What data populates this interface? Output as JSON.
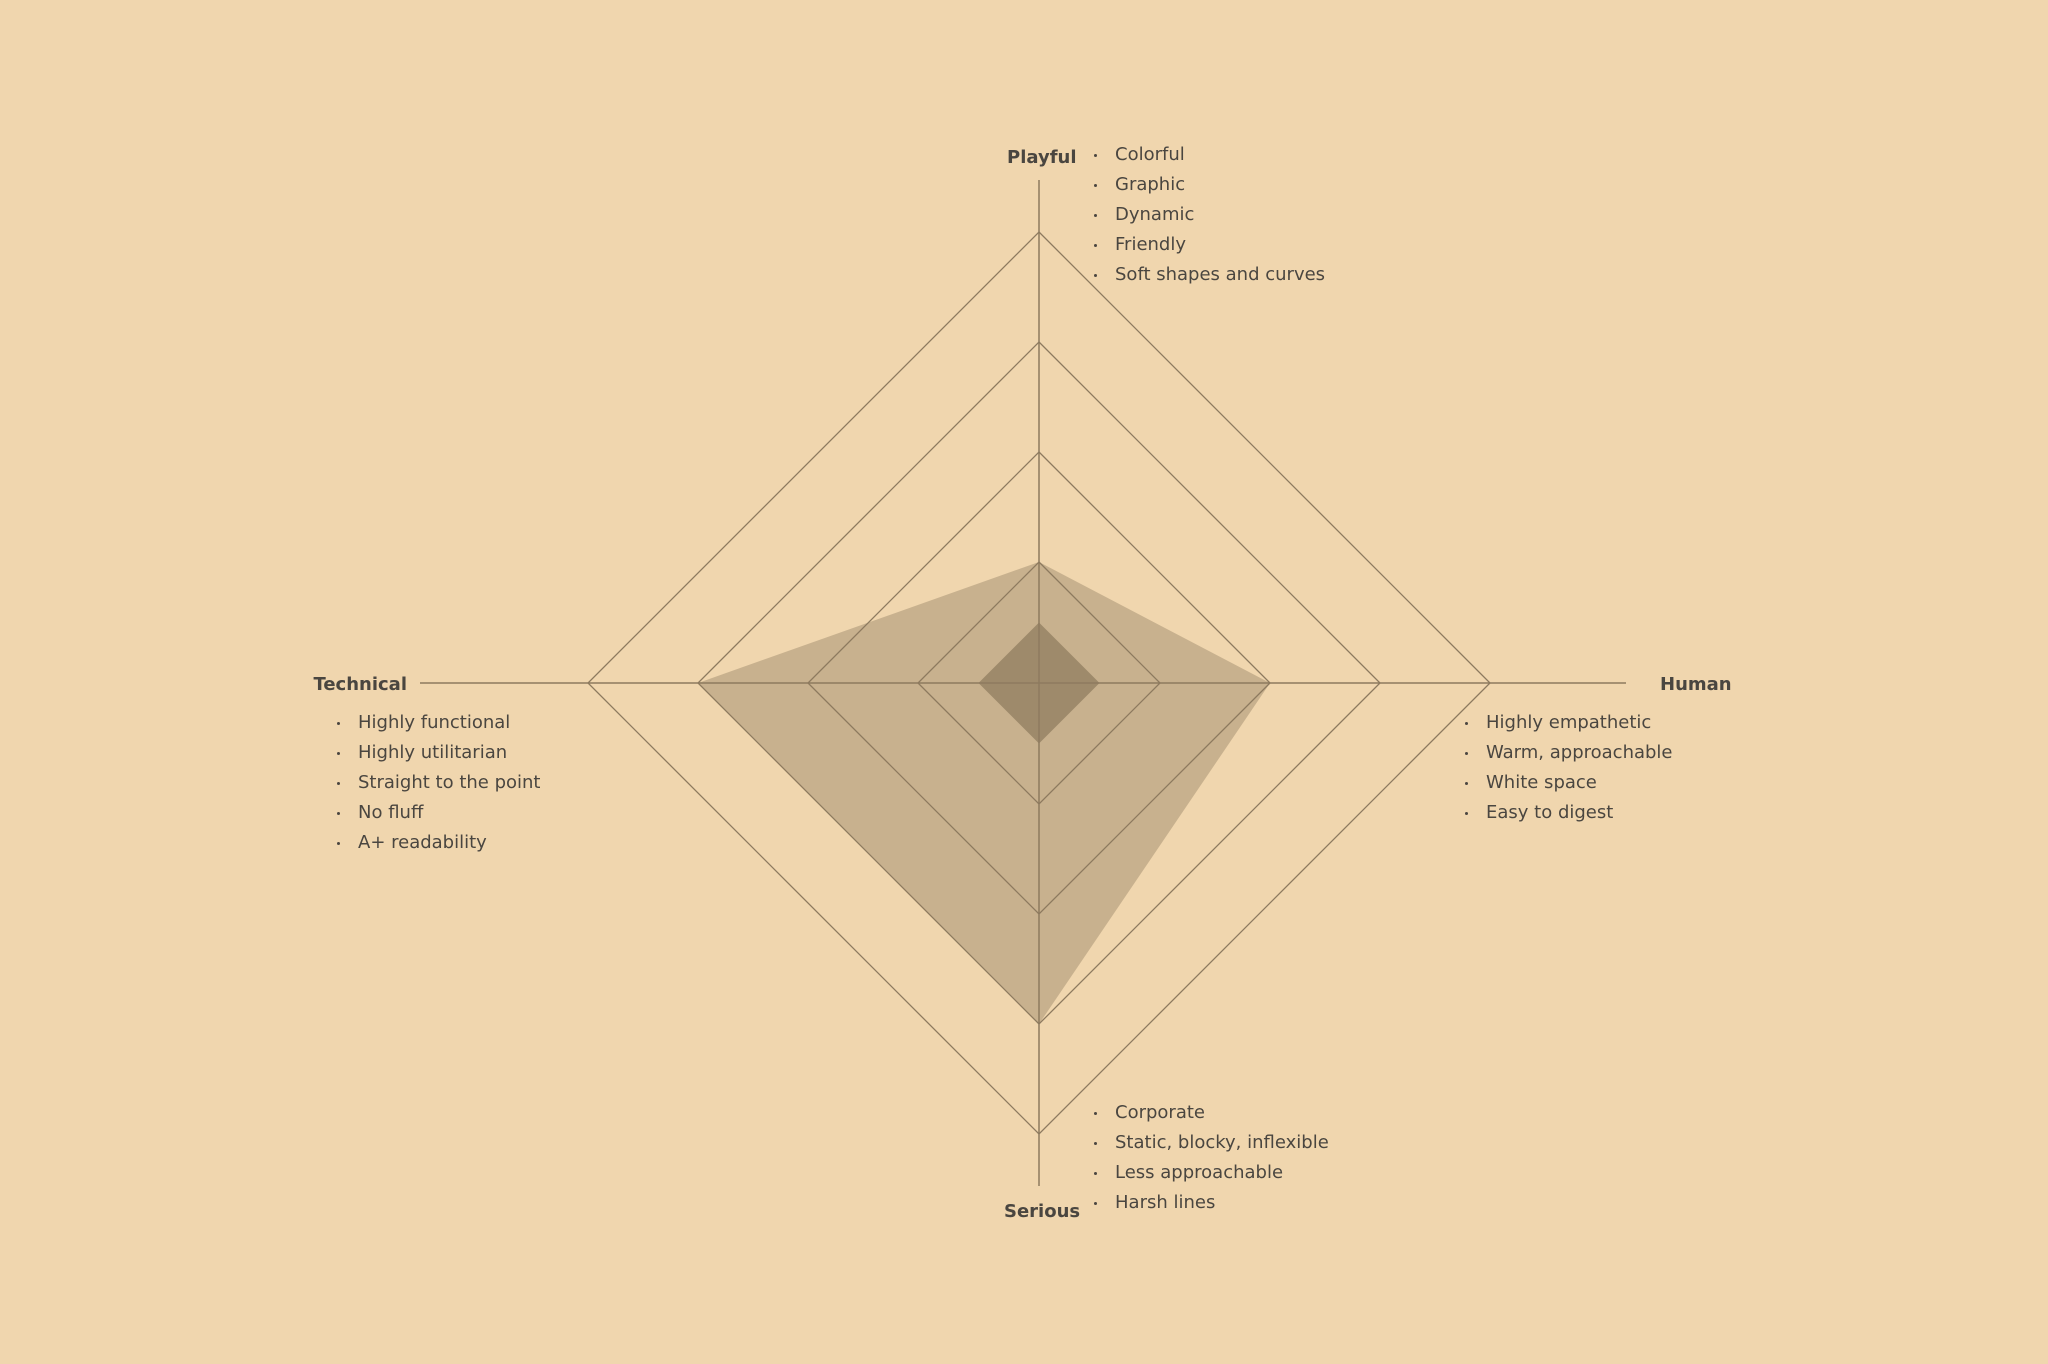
{
  "chart_data": {
    "type": "radar",
    "axes": [
      "Playful",
      "Human",
      "Serious",
      "Technical"
    ],
    "levels": 4,
    "series": [
      {
        "values": [
          1,
          2,
          3,
          3
        ]
      },
      {
        "values": [
          0.5,
          0.5,
          0.5,
          0.5
        ]
      }
    ],
    "grid": true,
    "colors": {
      "background": "#f0d6ae",
      "grid": "#8d7a5f",
      "series_fill": "#c8b18e",
      "inner_fill": "#9e8a6b",
      "text": "#4a4640"
    },
    "annotations": {
      "playful": [
        "Colorful",
        "Graphic",
        "Dynamic",
        "Friendly",
        "Soft shapes and curves"
      ],
      "human": [
        "Highly empathetic",
        "Warm, approachable",
        "White space",
        "Easy to digest"
      ],
      "serious": [
        "Corporate",
        "Static, blocky, inflexible",
        "Less approachable",
        "Harsh lines"
      ],
      "technical": [
        "Highly functional",
        "Highly utilitarian",
        "Straight to the point",
        "No fluff",
        "A+ readability"
      ]
    }
  }
}
